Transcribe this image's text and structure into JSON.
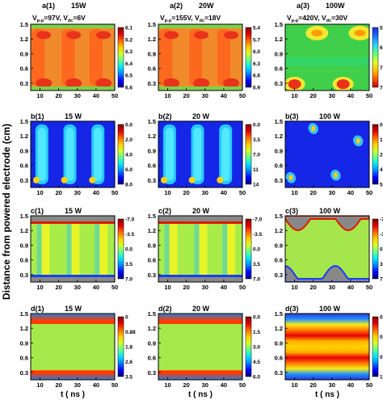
{
  "figure": {
    "ylabel": "Distance from powered electrode (cm)",
    "xlabel": "t ( ns )",
    "x_ticks": [
      "10",
      "20",
      "30",
      "40",
      "50"
    ],
    "y_ticks": [
      "0.3",
      "0.6",
      "0.9",
      "1.2",
      "1.5"
    ]
  },
  "chart_data": [
    {
      "type": "heatmap",
      "panel": "a(1)",
      "title_tag": "a(1)",
      "title_power": "15W",
      "condition": [
        "V",
        "p-p",
        "=97V, V",
        "dc",
        "=6V"
      ],
      "colorbar_ticks": [
        "6.1",
        "6.2",
        "6.3",
        "6.4",
        "6.5",
        "6.6"
      ],
      "x_range": [
        5,
        50
      ],
      "y_range": [
        0.15,
        1.5
      ],
      "grid": false,
      "colors": {
        "base": "#f08a2a",
        "highlight": "#e8321a",
        "edge": "#7fd04a"
      }
    },
    {
      "type": "heatmap",
      "panel": "a(2)",
      "title_tag": "a(2)",
      "title_power": "20W",
      "condition": [
        "V",
        "p-p",
        "=155V, V",
        "dc",
        "=18V"
      ],
      "colorbar_ticks": [
        "5.4",
        "5.7",
        "6.0",
        "6.3",
        "6.6",
        "6.9"
      ],
      "x_range": [
        5,
        50
      ],
      "y_range": [
        0.15,
        1.5
      ],
      "grid": false,
      "colors": {
        "base": "#f08a2a",
        "highlight": "#e8321a",
        "edge": "#7fd04a"
      }
    },
    {
      "type": "heatmap",
      "panel": "a(3)",
      "title_tag": "a(3)",
      "title_power": "100W",
      "condition": [
        "V",
        "p-p",
        "=420V, V",
        "dc",
        "=30V"
      ],
      "colorbar_ticks": [
        "5.6",
        "6.4",
        "7.2",
        "7.8"
      ],
      "x_range": [
        5,
        50
      ],
      "y_range": [
        0.15,
        1.5
      ],
      "grid": false,
      "colors": {
        "base": "#3fcf4a",
        "highlight": "#e8321a",
        "edge": "#f2e832"
      }
    },
    {
      "type": "heatmap",
      "panel": "b(1)",
      "title_tag": "b(1)",
      "title_power": "15 W",
      "colorbar_ticks": [
        "0.0",
        "2.0",
        "4.0",
        "6.0",
        "8.0"
      ],
      "x_range": [
        5,
        50
      ],
      "y_range": [
        0.15,
        1.5
      ],
      "grid": false
    },
    {
      "type": "heatmap",
      "panel": "b(2)",
      "title_tag": "b(2)",
      "title_power": "20 W",
      "colorbar_ticks": [
        "0.0",
        "3.5",
        "7.0",
        "11",
        "14"
      ],
      "x_range": [
        5,
        50
      ],
      "y_range": [
        0.15,
        1.5
      ],
      "grid": false
    },
    {
      "type": "heatmap",
      "panel": "b(3)",
      "title_tag": "b(3)",
      "title_power": "100 W",
      "colorbar_ticks": [
        "0.0",
        "1.4",
        "2.7",
        "4.1",
        "5.5"
      ],
      "x_range": [
        5,
        50
      ],
      "y_range": [
        0.15,
        1.5
      ],
      "grid": false
    },
    {
      "type": "heatmap",
      "panel": "c(1)",
      "title_tag": "c(1)",
      "title_power": "15 W",
      "colorbar_ticks": [
        "-7.0",
        "-3.5",
        "0.0",
        "3.5",
        "7.0"
      ],
      "x_range": [
        5,
        50
      ],
      "y_range": [
        0.15,
        1.5
      ],
      "grid": false
    },
    {
      "type": "heatmap",
      "panel": "c(2)",
      "title_tag": "c(2)",
      "title_power": "20 W",
      "colorbar_ticks": [
        "-7.0",
        "-3.5",
        "0.0",
        "3.5",
        "7.0"
      ],
      "x_range": [
        5,
        50
      ],
      "y_range": [
        0.15,
        1.5
      ],
      "grid": false
    },
    {
      "type": "heatmap",
      "panel": "c(3)",
      "title_tag": "c(3)",
      "title_power": "100 W",
      "colorbar_ticks": [
        "-7.0",
        "-3.5",
        "0.0",
        "3.5",
        "7.0"
      ],
      "x_range": [
        5,
        50
      ],
      "y_range": [
        0.15,
        1.5
      ],
      "grid": false
    },
    {
      "type": "heatmap",
      "panel": "d(1)",
      "title_tag": "d(1)",
      "title_power": "15 W",
      "colorbar_ticks": [
        "0",
        "0.88",
        "1.8",
        "2.6",
        "3.5"
      ],
      "x_range": [
        5,
        50
      ],
      "y_range": [
        0.15,
        1.5
      ],
      "grid": false
    },
    {
      "type": "heatmap",
      "panel": "d(2)",
      "title_tag": "d(2)",
      "title_power": "20 W",
      "colorbar_ticks": [
        "0.0",
        "1.5",
        "3.0",
        "4.5",
        "6.0"
      ],
      "x_range": [
        5,
        50
      ],
      "y_range": [
        0.15,
        1.5
      ],
      "grid": false
    },
    {
      "type": "heatmap",
      "panel": "d(3)",
      "title_tag": "d(3)",
      "title_power": "100 W",
      "colorbar_ticks": [
        "0",
        "0.07",
        "0.50",
        "1.0"
      ],
      "x_range": [
        5,
        50
      ],
      "y_range": [
        0.15,
        1.5
      ],
      "grid": false
    }
  ]
}
